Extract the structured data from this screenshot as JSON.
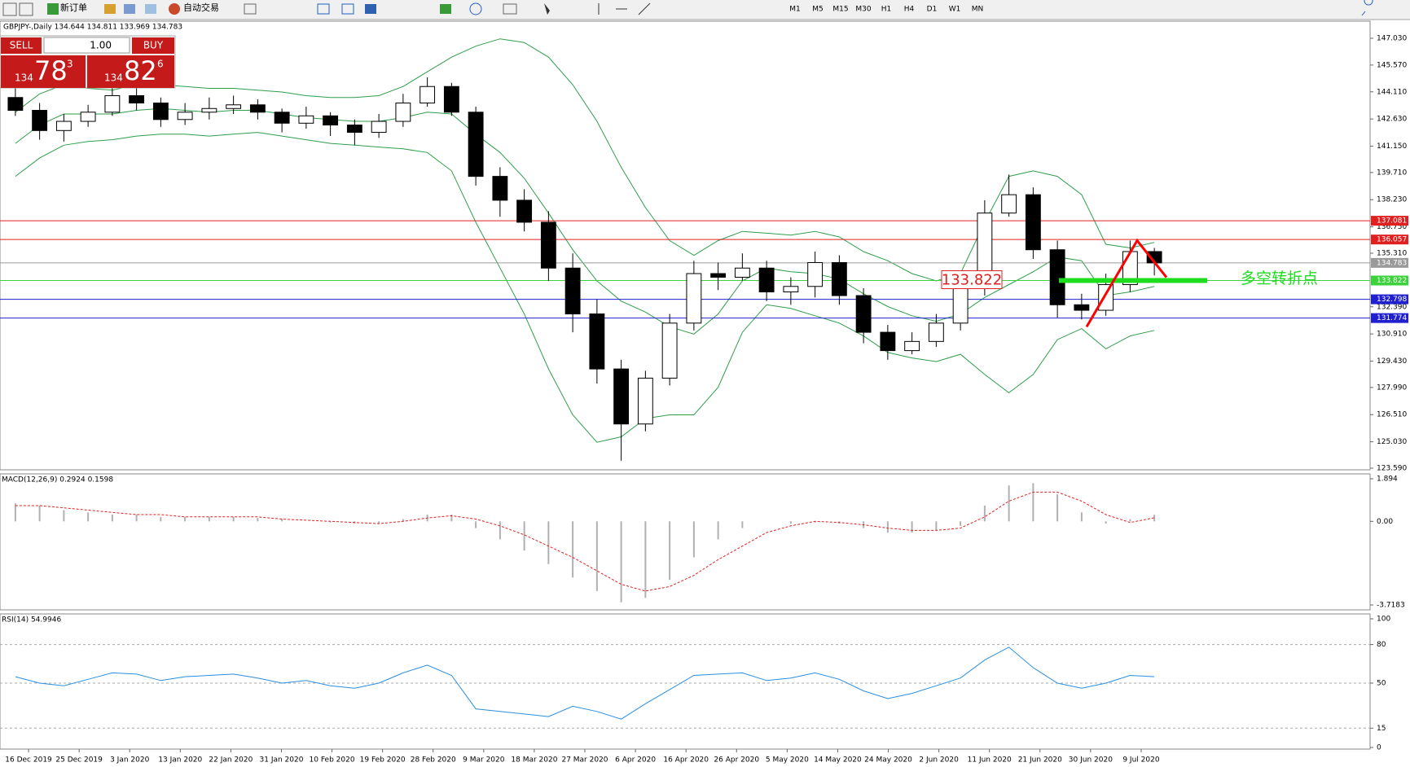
{
  "toolbar": {
    "new_order": "新订单",
    "auto_trade": "自动交易",
    "timeframes": [
      "M1",
      "M5",
      "M15",
      "M30",
      "H1",
      "H4",
      "D1",
      "W1",
      "MN"
    ]
  },
  "trade_panel": {
    "sell": "SELL",
    "lot": "1.00",
    "buy": "BUY",
    "sell_big": "134",
    "sell_main": "78",
    "sell_sup": "3",
    "buy_big": "134",
    "buy_main": "82",
    "buy_sup": "6"
  },
  "chart_data": {
    "type": "candlestick",
    "title": "GBPJPY-,Daily 134.644 134.811 133.969 134.783",
    "date_labels": [
      "16 Dec 2019",
      "25 Dec 2019",
      "3 Jan 2020",
      "13 Jan 2020",
      "22 Jan 2020",
      "31 Jan 2020",
      "10 Feb 2020",
      "19 Feb 2020",
      "28 Feb 2020",
      "9 Mar 2020",
      "18 Mar 2020",
      "27 Mar 2020",
      "6 Apr 2020",
      "16 Apr 2020",
      "26 Apr 2020",
      "5 May 2020",
      "14 May 2020",
      "24 May 2020",
      "2 Jun 2020",
      "11 Jun 2020",
      "21 Jun 2020",
      "30 Jun 2020",
      "9 Jul 2020"
    ],
    "open": [
      143.8,
      143.1,
      142.0,
      142.5,
      143.0,
      143.9,
      143.5,
      142.6,
      143.0,
      143.2,
      143.4,
      143.0,
      142.4,
      142.8,
      142.3,
      141.9,
      142.5,
      143.5,
      144.4,
      143.0,
      139.5,
      138.2,
      137.0,
      134.5,
      132.0,
      129.0,
      126.0,
      128.5,
      131.5,
      134.2,
      134.0,
      134.5,
      133.2,
      133.5,
      134.8,
      133.0,
      131.0,
      130.0,
      130.5,
      131.5,
      133.5,
      137.5,
      138.5,
      135.5,
      132.5,
      132.2,
      133.6,
      135.4
    ],
    "high": [
      144.3,
      143.5,
      142.9,
      143.4,
      144.3,
      144.3,
      143.8,
      143.5,
      143.8,
      143.9,
      143.7,
      143.2,
      143.3,
      143.0,
      142.6,
      142.9,
      144.0,
      144.9,
      144.6,
      143.3,
      140.0,
      138.8,
      137.6,
      135.3,
      132.8,
      129.5,
      128.9,
      132.0,
      134.9,
      134.8,
      135.3,
      134.9,
      134.0,
      135.4,
      135.2,
      133.4,
      131.4,
      131.0,
      132.0,
      134.2,
      138.2,
      139.6,
      138.9,
      136.0,
      133.1,
      134.2,
      136.0,
      135.6
    ],
    "low": [
      142.8,
      141.5,
      141.4,
      142.2,
      142.8,
      143.1,
      142.2,
      142.3,
      142.6,
      142.9,
      142.6,
      141.9,
      142.1,
      141.7,
      141.2,
      141.6,
      142.2,
      143.3,
      142.8,
      139.0,
      137.3,
      136.5,
      133.8,
      131.0,
      128.2,
      124.0,
      125.6,
      128.1,
      131.1,
      133.3,
      133.8,
      132.7,
      132.5,
      132.9,
      132.5,
      130.4,
      129.5,
      129.8,
      130.2,
      131.1,
      133.0,
      137.3,
      135.0,
      131.8,
      131.7,
      131.9,
      133.2,
      134.1
    ],
    "close": [
      143.1,
      142.0,
      142.5,
      143.0,
      143.9,
      143.5,
      142.6,
      143.0,
      143.2,
      143.4,
      143.0,
      142.4,
      142.8,
      142.3,
      141.9,
      142.5,
      143.5,
      144.4,
      143.0,
      139.5,
      138.2,
      137.0,
      134.5,
      132.0,
      129.0,
      126.0,
      128.5,
      131.5,
      134.2,
      134.0,
      134.5,
      133.2,
      133.5,
      134.8,
      133.0,
      131.0,
      130.0,
      130.5,
      131.5,
      133.5,
      137.5,
      138.5,
      135.5,
      132.5,
      132.2,
      133.6,
      135.4,
      134.783
    ],
    "bands": {
      "color": "#2e9e4a",
      "upper": [
        143.0,
        144.0,
        144.5,
        144.3,
        144.2,
        144.5,
        144.5,
        144.4,
        144.3,
        144.3,
        144.2,
        144.1,
        143.9,
        143.8,
        143.8,
        143.9,
        144.4,
        145.2,
        146.0,
        146.6,
        147.0,
        146.8,
        146.0,
        144.5,
        142.5,
        140.0,
        137.8,
        136.0,
        135.2,
        136.0,
        136.5,
        136.4,
        136.3,
        136.5,
        136.2,
        135.4,
        134.9,
        134.2,
        133.8,
        134.2,
        137.0,
        139.5,
        139.8,
        139.5,
        138.5,
        135.8,
        135.6,
        135.9
      ],
      "middle": [
        141.3,
        142.3,
        142.9,
        142.9,
        142.9,
        143.1,
        143.2,
        143.1,
        143.0,
        143.1,
        143.1,
        142.9,
        142.7,
        142.6,
        142.5,
        142.5,
        142.7,
        143.0,
        142.9,
        141.8,
        140.8,
        139.4,
        137.5,
        135.5,
        133.8,
        132.7,
        132.1,
        131.3,
        130.9,
        132.0,
        133.8,
        134.5,
        134.3,
        134.2,
        133.9,
        133.1,
        132.4,
        131.9,
        131.6,
        132.0,
        132.9,
        133.6,
        134.3,
        135.1,
        134.9,
        133.0,
        133.2,
        133.5
      ],
      "lower": [
        139.5,
        140.5,
        141.2,
        141.4,
        141.5,
        141.7,
        141.8,
        141.8,
        141.7,
        141.8,
        141.9,
        141.7,
        141.5,
        141.3,
        141.2,
        141.1,
        141.0,
        140.8,
        139.8,
        137.0,
        134.5,
        132.0,
        129.0,
        126.5,
        125.0,
        125.3,
        126.3,
        126.5,
        126.5,
        128.0,
        131.0,
        132.5,
        132.3,
        131.9,
        131.5,
        130.8,
        129.9,
        129.6,
        129.4,
        129.8,
        128.7,
        127.7,
        128.7,
        130.6,
        131.2,
        130.1,
        130.8,
        131.1
      ]
    },
    "ylim": [
      123.59,
      147.03
    ],
    "yticks": [
      {
        "value": 147.03,
        "label": "147.030"
      },
      {
        "value": 145.57,
        "label": "145.570"
      },
      {
        "value": 144.11,
        "label": "144.110"
      },
      {
        "value": 142.63,
        "label": "142.630"
      },
      {
        "value": 141.15,
        "label": "141.150"
      },
      {
        "value": 139.71,
        "label": "139.710"
      },
      {
        "value": 138.23,
        "label": "138.230"
      },
      {
        "value": 136.75,
        "label": "136.750"
      },
      {
        "value": 135.31,
        "label": "135.310"
      },
      {
        "value": 132.39,
        "label": "132.390"
      },
      {
        "value": 130.91,
        "label": "130.910"
      },
      {
        "value": 129.43,
        "label": "129.430"
      },
      {
        "value": 127.99,
        "label": "127.990"
      },
      {
        "value": 126.51,
        "label": "126.510"
      },
      {
        "value": 125.03,
        "label": "125.030"
      },
      {
        "value": 123.59,
        "label": "123.590"
      }
    ],
    "levels": [
      {
        "value": 137.081,
        "color": "#e02020"
      },
      {
        "value": 136.057,
        "color": "#e02020"
      },
      {
        "value": 134.783,
        "color": "#9a9a9a"
      },
      {
        "value": 133.822,
        "color": "#3cd23c"
      },
      {
        "value": 132.798,
        "color": "#2020d0"
      },
      {
        "value": 131.774,
        "color": "#2020d0"
      }
    ],
    "annotation_price": "133.822",
    "annotation_text": "多空转折点",
    "macd": {
      "label": "MACD(12,26,9) 0.2924 0.1598",
      "ylim": [
        -3.7183,
        1.894
      ],
      "yticks": [
        1.894,
        {
          "value": 0,
          "label": "0.00"
        },
        -3.7183
      ],
      "histogram": [
        0.8,
        0.7,
        0.5,
        0.4,
        0.3,
        0.3,
        0.2,
        0.2,
        0.2,
        0.2,
        0.15,
        0.1,
        0.0,
        -0.05,
        -0.1,
        -0.1,
        0.1,
        0.3,
        0.3,
        -0.3,
        -0.8,
        -1.3,
        -1.9,
        -2.5,
        -3.1,
        -3.6,
        -3.4,
        -2.6,
        -1.6,
        -0.8,
        -0.3,
        0.0,
        -0.1,
        -0.05,
        -0.1,
        -0.3,
        -0.5,
        -0.5,
        -0.4,
        -0.2,
        0.7,
        1.6,
        1.7,
        1.2,
        0.4,
        -0.1,
        0.1,
        0.2924
      ],
      "signal": [
        0.7,
        0.7,
        0.6,
        0.5,
        0.4,
        0.3,
        0.3,
        0.2,
        0.2,
        0.2,
        0.2,
        0.1,
        0.05,
        0.0,
        -0.05,
        -0.1,
        0.0,
        0.15,
        0.25,
        0.1,
        -0.2,
        -0.6,
        -1.1,
        -1.6,
        -2.2,
        -2.8,
        -3.1,
        -2.9,
        -2.4,
        -1.7,
        -1.1,
        -0.5,
        -0.2,
        0.0,
        -0.05,
        -0.15,
        -0.3,
        -0.4,
        -0.4,
        -0.3,
        0.2,
        0.9,
        1.3,
        1.3,
        0.9,
        0.3,
        -0.05,
        0.1598
      ],
      "hist_color": "#b0b0b0",
      "signal_color": "#e02020"
    },
    "rsi": {
      "label": "RSI(14) 54.9946",
      "ylim": [
        0,
        100
      ],
      "yticks": [
        100,
        80,
        50,
        15,
        0
      ],
      "levels": [
        80,
        50,
        15
      ],
      "color": "#2a8ee0",
      "values": [
        55,
        50,
        48,
        53,
        58,
        57,
        52,
        55,
        56,
        57,
        54,
        50,
        52,
        48,
        46,
        50,
        58,
        64,
        56,
        30,
        28,
        26,
        24,
        32,
        28,
        22,
        34,
        45,
        56,
        57,
        58,
        52,
        54,
        58,
        53,
        44,
        38,
        42,
        48,
        54,
        68,
        78,
        62,
        50,
        46,
        50,
        56,
        54.9946
      ]
    }
  }
}
